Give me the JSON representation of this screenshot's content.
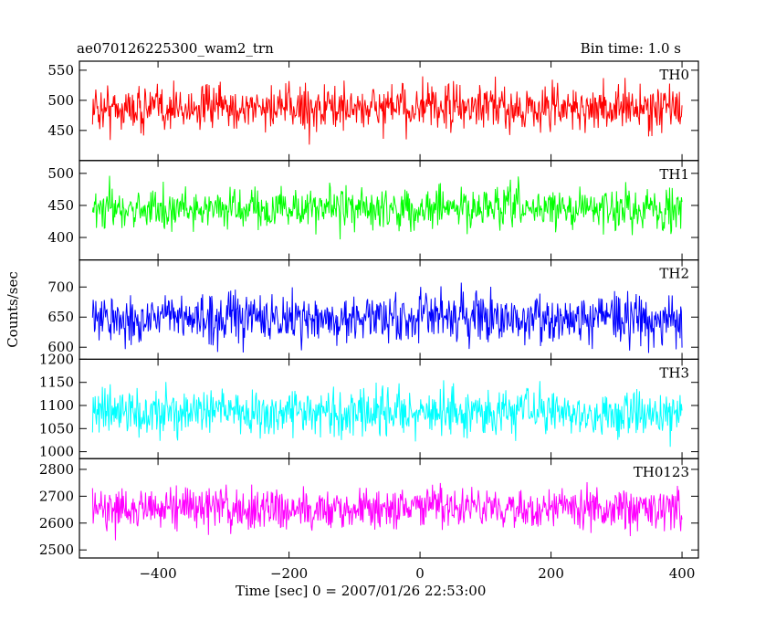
{
  "chart_data": {
    "type": "line",
    "title_left": "ae070126225300_wam2_trn",
    "title_right": "Bin time: 1.0 s",
    "xlabel": "Time [sec] 0 = 2007/01/26 22:53:00",
    "ylabel": "Counts/sec",
    "x_range": [
      -500,
      400
    ],
    "xlim": [
      -520,
      425
    ],
    "x_ticks": [
      -400,
      -200,
      0,
      200,
      400
    ],
    "x_tick_labels": [
      "−400",
      "−200",
      "0",
      "200",
      "400"
    ],
    "grid": false,
    "panels": [
      {
        "name": "TH0",
        "color": "#ff0000",
        "ylim": [
          400,
          565
        ],
        "y_ticks": [
          450,
          500,
          550
        ],
        "y_tick_labels": [
          "450",
          "500",
          "550"
        ],
        "mean": 487,
        "typical_range": [
          430,
          550
        ],
        "min": 415,
        "max": 562
      },
      {
        "name": "TH1",
        "color": "#00ff00",
        "ylim": [
          365,
          520
        ],
        "y_ticks": [
          400,
          450,
          500
        ],
        "y_tick_labels": [
          "400",
          "450",
          "500"
        ],
        "mean": 445,
        "typical_range": [
          395,
          495
        ],
        "min": 368,
        "max": 515
      },
      {
        "name": "TH2",
        "color": "#0000ff",
        "ylim": [
          580,
          745
        ],
        "y_ticks": [
          600,
          650,
          700
        ],
        "y_tick_labels": [
          "600",
          "650",
          "700"
        ],
        "mean": 648,
        "typical_range": [
          590,
          720
        ],
        "min": 582,
        "max": 742
      },
      {
        "name": "TH3",
        "color": "#00ffff",
        "ylim": [
          985,
          1200
        ],
        "y_ticks": [
          1000,
          1050,
          1100,
          1150,
          1200
        ],
        "y_tick_labels": [
          "1000",
          "1050",
          "1100",
          "1150",
          "1200"
        ],
        "mean": 1085,
        "typical_range": [
          1010,
          1170
        ],
        "min": 990,
        "max": 1198
      },
      {
        "name": "TH0123",
        "color": "#ff00ff",
        "ylim": [
          2470,
          2840
        ],
        "y_ticks": [
          2500,
          2600,
          2700,
          2800
        ],
        "y_tick_labels": [
          "2500",
          "2600",
          "2700",
          "2800"
        ],
        "mean": 2655,
        "typical_range": [
          2540,
          2790
        ],
        "min": 2475,
        "max": 2835
      }
    ]
  }
}
